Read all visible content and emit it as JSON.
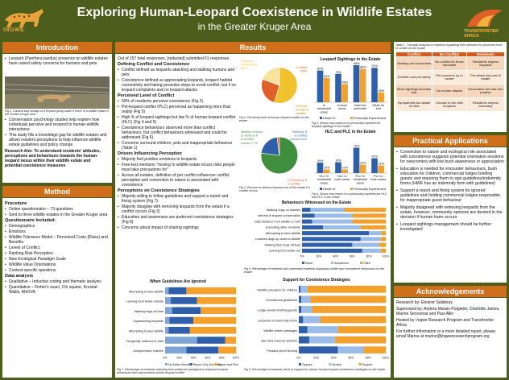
{
  "header": {
    "title": "Exploring Human-Leopard Coexistence in Wildlife Estates",
    "subtitle": "in the Greater Kruger Area",
    "logo_left_text": "INGWE",
    "logo_right_text": "TRANSFRONTIER AFRICA"
  },
  "sections": {
    "introduction": "Introduction",
    "method": "Method",
    "results": "Results",
    "practical": "Practical Applications",
    "acknowledgements": "Acknowledgements"
  },
  "intro": {
    "bullet1": "Leopard (Panthera pardus) presence on wildlife estates have raised safety concerns for humans and pets",
    "photo_caption": "Fig 1. Camera trap footage of a leopard going under a fence of a wildlife estate in the Greater Kruger area",
    "bullet2": "Conservation psychology studies help explore how individuals perceive and respond to human-wildlife interactions",
    "bullet3": "This study fills a knowledge gap for wildlife estates and allows resident perceptions to help influence wildlife estate guidelines and policy change",
    "aim": "Research Aim: To understand residents' attitudes, perceptions and behaviours towards the human-leopard nexus within their wildlife estate and potential coexistence measures"
  },
  "method": {
    "procedure_title": "Procedure",
    "procedure": [
      "Online questionnaire – 73 questions",
      "Sent to three wildlife estates in the Greater Kruger area"
    ],
    "questionnaire_title": "Questionnaire Included:",
    "questionnaire": [
      "Demographics",
      "Emotions",
      "Wildlife Tolerance Model – Perceived Costs (Risks) and Benefits",
      "Levels of Conflict",
      "Ranking Risk Perception",
      "New Ecological Paradigm Scale",
      "Wildlife Value Orientations",
      "Context-specific questions"
    ],
    "analysis_title": "Data analysis",
    "analysis": [
      "Qualitative – Inductive coding and thematic analysis",
      "Quantitative – Fisher's exact, Chi square, Kruskal-Wallis, ANOVA"
    ]
  },
  "results_text": {
    "intro": "Out of 157 total responses, [redacted] submitted 61 responses",
    "h1": "Defining Conflict and Coexistence",
    "p1": [
      "Conflict defined as leopards attacking and stalking humans and pets",
      "Coexistence defined as appreciating leopards, leopard habitat connectivity and taking proactive steps to avoid conflict, but if no leopard complaints and no leopard attacks"
    ],
    "h2": "Perceived Level of Conflict",
    "p2": [
      "59% of residents perceive coexistence (Fig 2)",
      "Pet-leopard conflict (PLC) perceived as happening more than reality (Fig 5)",
      "High % of leopard sightings but low % of human-leopard conflict (HLC) (Fig 4 and 5)",
      "Coexistence behaviours observed more than conflict behaviours, but conflict behaviours witnessed and could be addressed (Fig 6)",
      "Concerns surround children, pets and inappropriate behaviour (Table 1)"
    ],
    "h3": "Drivers Influencing Perception",
    "p3": [
      "Majority feel positive emotions to leopards",
      "Free-text mentions \"moving to wildlife estate incurs risks people must take precautions for\"",
      "Across all estates, definition of pet conflict influences conflict perception and connection to nature is associated with coexistence"
    ],
    "h4": "Perceptions on Coexistence Strategies",
    "p4": [
      "Majority willing to follow guidelines and support a report and fining system (Fig 7)",
      "Majority disagree with removing leopards from the estate if a conflict occurs (Fig 3)",
      "Education and awareness are preferred coexistence strategies (Fig 8)",
      "Concerns about impact of sharing sightings"
    ]
  },
  "fig2": {
    "caption": "Fig 2. Perceived level of human-leopard conflict on the estate",
    "labels": [
      "Peaceful coexistence 59%",
      "Conflict 28%",
      "21% No human-leopard conflict"
    ]
  },
  "fig3": {
    "caption": "Fig 3. Remove or destroy leopards out of the estate if a conflict occurs",
    "labels": [
      "Neither remove or destroy if a conflict occurs 77%",
      "Remove if a conflict occurs 21%",
      "2% Destroy if a conflict occurs"
    ]
  },
  "fig4": {
    "title": "Leopard Sightings in the Estate",
    "caption": "Fig 4. Shows how heard of vs personally experienced leopard sightings in the estate",
    "legend": [
      "Heard Of",
      "Personally Experienced"
    ]
  },
  "fig5": {
    "title": "HLC and PLC in the Estate",
    "caption": "Fig 5. Shows how heard of vs personally experienced HLC and PLC in the estate",
    "legend": [
      "Heard Of",
      "Personally Experienced"
    ]
  },
  "fig6": {
    "title": "Behaviours Witnessed on the Estate",
    "caption": "Fig 6. Percentage of residents who witnessed residents displaying conflict and coexistence behaviours on the estate",
    "legend": [
      "Never",
      "Sometimes",
      "Often"
    ]
  },
  "fig7": {
    "title": "When Guidelines Are Ignored",
    "caption": "Fig 7. Percentage of residents selecting their preferred management response towards behaviours that may increase human-leopard conflict",
    "legend": [
      "No Action Needed",
      "Report Only (No Fine)",
      "Report and Fine"
    ]
  },
  "fig8": {
    "title": "Support for Coexistence Strategies",
    "caption": "Fig 8. Percentage of residents' level of support for various human-leopard coexistence strategies on the estate",
    "legend": [
      "Oppose",
      "Neutral",
      "Support"
    ]
  },
  "table1": {
    "caption": "Table 1. Thematic analysis of residents explaining their selection for perceived level of conflict on the estate",
    "headers": [
      "Conflict",
      "No Conflict",
      "Residents"
    ],
    "rows": [
      [
        "Seeking out encounters",
        "No conflict for those educated",
        "Residents respect leopards"
      ],
      [
        "Children and pet safety",
        "Pet concerns up to owner",
        "Pet attack risk part of estate"
      ],
      [
        "More sightings increase fear",
        "No human attacks",
        "Encounters are rare and positive"
      ],
      [
        "Sympathetic but aware of risks",
        "Choose to live with leopards",
        "Residents respect boundary"
      ]
    ]
  },
  "practical": {
    "items": [
      "Connection to nature and ecological role associated with coexistence suggests potential orientation sessions for newcomers with low bush awareness or appreciation",
      "Education is needed for encounter behaviours, bush education for children, commercial lodges briefing guests and requiring them to sign guidelines/indemnity forms (HWE has an indemnity form with guidelines)",
      "Support a report and fining system for ignored guidelines and holding commercial lodges responsible for inappropriate guest behaviour",
      "Majority disagreed with removing leopards from the estate, however, community opinions are desired in the decision if human harm occurs",
      "Leopard sightings management should be further investigated"
    ]
  },
  "ack": {
    "research_by": "Research by: Eleanor Salisbury",
    "supervised_by": "Supervised by: Andrea Marais-Potgieter, Charlotte James, Marine Servonnat and Paul Allin",
    "hosted_by": "Hosted by: Ingwe Research Program and Transfrontier Africa",
    "contact": "For further information or a more detailed report, please email Marine at marine@ingweresearchprogram.org"
  },
  "chart_data": [
    {
      "type": "pie",
      "title": "",
      "categories": [
        "Peaceful coexistence",
        "Conflict",
        "No human-leopard conflict"
      ],
      "values": [
        59,
        28,
        21
      ],
      "colors": [
        "#f2c12e",
        "#e0602a",
        "#f7e39a"
      ]
    },
    {
      "type": "pie",
      "title": "",
      "categories": [
        "Neither remove or destroy if a conflict occurs",
        "Remove if a conflict occurs",
        "Destroy if a conflict occurs"
      ],
      "values": [
        77,
        21,
        2
      ],
      "colors": [
        "#3f8f3f",
        "#2f5fa8",
        "#e0602a"
      ]
    },
    {
      "type": "bar",
      "title": "Leopard Sightings in the Estate",
      "categories": [
        "In residential areas",
        "In bush areas",
        "Near the perimeter",
        "While on foot"
      ],
      "series": [
        {
          "name": "Heard Of",
          "values": [
            84,
            75,
            98,
            91
          ]
        },
        {
          "name": "Personally Experienced",
          "values": [
            64,
            48,
            88,
            26
          ]
        }
      ],
      "ylim": [
        0,
        100
      ],
      "colors": [
        "#2f5fa8",
        "#f2a02e"
      ]
    },
    {
      "type": "bar",
      "title": "HLC and PLC in the Estate",
      "categories": [
        "HLC in residential areas",
        "HLC in bush areas",
        "PLC in residential areas",
        "PLC in bush areas"
      ],
      "series": [
        {
          "name": "Heard Of",
          "values": [
            29,
            30,
            70,
            41
          ]
        },
        {
          "name": "Personally Experienced",
          "values": [
            10,
            10,
            23,
            21
          ]
        }
      ],
      "ylim": [
        0,
        100
      ],
      "colors": [
        "#2f5fa8",
        "#f2a02e"
      ]
    },
    {
      "type": "bar",
      "title": "Behaviours Witnessed on the Estate",
      "orientation": "horizontal-stacked",
      "categories": [
        "Walking dogs on leashes",
        "Interest in leopard conservation",
        "Safe distance from wildlife on foot",
        "Educating other residents",
        "Attempting to feed wildlife",
        "Leashed dogs up close to wildlife",
        "Walking their dogs off lead",
        "Leaving food waste out"
      ],
      "series": [
        {
          "name": "Never",
          "values": [
            10,
            15,
            12,
            25,
            80,
            70,
            60,
            72
          ]
        },
        {
          "name": "Sometimes",
          "values": [
            40,
            45,
            48,
            45,
            15,
            24,
            32,
            22
          ]
        },
        {
          "name": "Often",
          "values": [
            50,
            40,
            40,
            30,
            5,
            6,
            8,
            6
          ]
        }
      ],
      "xlim": [
        0,
        100
      ],
      "colors": [
        "#2f5fa8",
        "#9bbce8",
        "#f2a02e"
      ]
    },
    {
      "type": "bar",
      "title": "When Guidelines Are Ignored",
      "orientation": "horizontal-stacked",
      "categories": [
        "Attempting to feed wildlife",
        "Leaving food waste outside",
        "Walking dogs off-lead",
        "Approaching leopards",
        "Attempting to feed wildlife",
        "Frequently outdoors in dark",
        "Unsupervised children"
      ],
      "series": [
        {
          "name": "No Action Needed",
          "values": [
            5,
            8,
            10,
            6,
            5,
            45,
            30
          ]
        },
        {
          "name": "Report Only (No Fine)",
          "values": [
            25,
            37,
            40,
            34,
            30,
            40,
            45
          ]
        },
        {
          "name": "Report and Fine",
          "values": [
            70,
            55,
            50,
            60,
            65,
            15,
            25
          ]
        }
      ],
      "xlim": [
        0,
        100
      ],
      "colors": [
        "#7ea4d8",
        "#2f5fa8",
        "#f2a02e"
      ]
    },
    {
      "type": "bar",
      "title": "Support for Coexistence Strategies",
      "orientation": "horizontal-stacked",
      "categories": [
        "Wildlife education for children",
        "Coexistence guidelines",
        "Lodge owners briefing guests",
        "Leopards on indemnity forms",
        "Wildlife culvert passages",
        "Alert and respond systems",
        "Predator-proof fencing"
      ],
      "series": [
        {
          "name": "Oppose",
          "values": [
            2,
            3,
            3,
            5,
            10,
            12,
            45
          ]
        },
        {
          "name": "Neutral",
          "values": [
            8,
            10,
            12,
            20,
            35,
            30,
            30
          ]
        },
        {
          "name": "Support",
          "values": [
            90,
            87,
            85,
            75,
            55,
            58,
            25
          ]
        }
      ],
      "xlim": [
        0,
        100
      ],
      "colors": [
        "#2f5fa8",
        "#9bbce8",
        "#f2a02e"
      ]
    }
  ]
}
